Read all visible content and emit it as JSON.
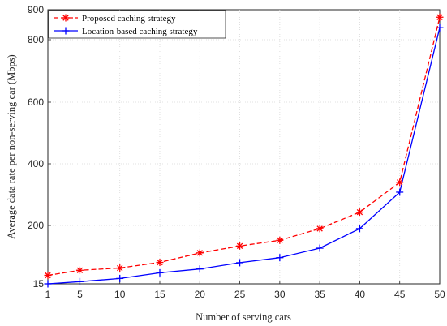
{
  "chart_data": {
    "type": "line",
    "title": "",
    "xlabel": "Number of serving cars",
    "ylabel": "Average data rate per non-serving car (Mbps)",
    "x": [
      1,
      5,
      10,
      15,
      20,
      25,
      30,
      35,
      40,
      45,
      50
    ],
    "x_ticks": [
      1,
      5,
      10,
      15,
      20,
      25,
      30,
      35,
      40,
      45,
      50
    ],
    "y_ticks": [
      15,
      200,
      400,
      600,
      800,
      900
    ],
    "xlim": [
      1,
      50
    ],
    "ylim": [
      15,
      900
    ],
    "grid": true,
    "legend_position": "top-left",
    "series": [
      {
        "name": "Proposed caching strategy",
        "color": "#ff0000",
        "line_style": "dashed",
        "marker": "asterisk",
        "values": [
          42,
          58,
          65,
          83,
          113,
          135,
          153,
          190,
          243,
          340,
          875
        ]
      },
      {
        "name": "Location-based caching strategy",
        "color": "#0000ff",
        "line_style": "solid",
        "marker": "plus",
        "values": [
          15,
          22,
          32,
          50,
          62,
          82,
          98,
          128,
          190,
          308,
          840
        ]
      }
    ]
  }
}
